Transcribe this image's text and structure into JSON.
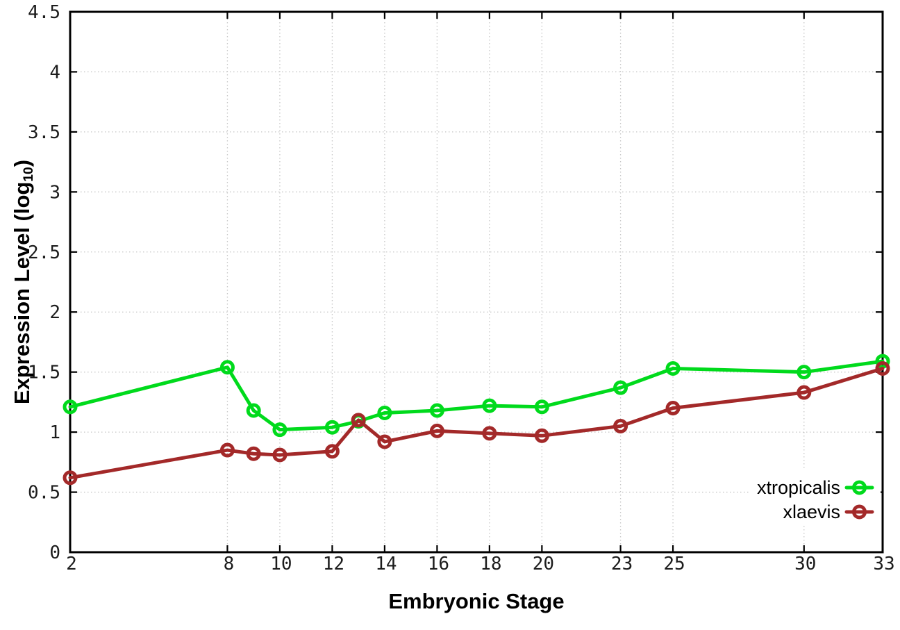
{
  "chart_data": {
    "type": "line",
    "title": "",
    "xlabel": "Embryonic Stage",
    "ylabel": "Expression Level (log10)",
    "ylabel_rich": {
      "pre": "Expression Level (log",
      "sub": "10",
      "post": ")"
    },
    "x": [
      2,
      8,
      9,
      10,
      12,
      13,
      14,
      16,
      18,
      20,
      23,
      25,
      30,
      33
    ],
    "series": [
      {
        "name": "xtropicalis",
        "color": "#00da1c",
        "values": [
          1.21,
          1.54,
          1.18,
          1.02,
          1.04,
          1.09,
          1.16,
          1.18,
          1.22,
          1.21,
          1.37,
          1.53,
          1.5,
          1.59
        ]
      },
      {
        "name": "xlaevis",
        "color": "#a32929",
        "values": [
          0.62,
          0.85,
          0.82,
          0.81,
          0.84,
          1.1,
          0.92,
          1.01,
          0.99,
          0.97,
          1.05,
          1.2,
          1.33,
          1.53
        ]
      }
    ],
    "xlim": [
      2,
      33
    ],
    "ylim": [
      0,
      4.5
    ],
    "xticks": [
      2,
      8,
      10,
      12,
      14,
      16,
      18,
      20,
      23,
      25,
      30,
      33
    ],
    "xtick_labels": [
      "2",
      "8",
      "10",
      "12",
      "14",
      "16",
      "18",
      "20",
      "23",
      "25",
      "30",
      "33"
    ],
    "yticks": [
      0,
      0.5,
      1,
      1.5,
      2,
      2.5,
      3,
      3.5,
      4,
      4.5
    ],
    "ytick_labels": [
      "0",
      "0.5",
      "1",
      "1.5",
      "2",
      "2.5",
      "3",
      "3.5",
      "4",
      "4.5"
    ],
    "grid": true,
    "grid_style": "dotted",
    "legend_position": "inside-right-bottom",
    "marker": "open-circle",
    "line_width": 5,
    "colors": {
      "background": "#ffffff",
      "border": "#000000",
      "grid": "#c6c6c6",
      "tick_label": "#1c1c1c",
      "legend_text": "#000000"
    }
  }
}
